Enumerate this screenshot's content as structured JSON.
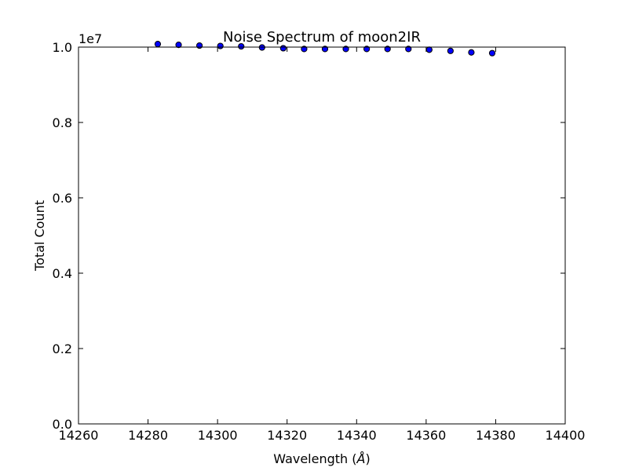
{
  "chart_data": {
    "type": "scatter",
    "title": "Noise Spectrum of moon2IR",
    "xlabel": "Wavelength (",
    "xlabel_unit": "Å",
    "xlabel_close": ")",
    "ylabel": "Total Count",
    "y_multiplier": "1e7",
    "xlim": [
      14260,
      14400
    ],
    "ylim": [
      0.0,
      1.0
    ],
    "xticks": [
      "14260",
      "14280",
      "14300",
      "14320",
      "14340",
      "14360",
      "14380",
      "14400"
    ],
    "yticks": [
      "0.0",
      "0.2",
      "0.4",
      "0.6",
      "0.8",
      "1.0"
    ],
    "grid": false,
    "marker_color": "#0000ff",
    "x": [
      14282.8,
      14288.8,
      14294.8,
      14300.8,
      14306.8,
      14312.8,
      14318.9,
      14324.9,
      14330.9,
      14336.9,
      14342.9,
      14348.9,
      14354.9,
      14360.9,
      14367.0,
      14373.0,
      14379.0
    ],
    "y": [
      1.008,
      1.006,
      1.004,
      1.003,
      1.002,
      0.999,
      0.997,
      0.995,
      0.995,
      0.995,
      0.995,
      0.995,
      0.995,
      0.993,
      0.99,
      0.986,
      0.984
    ]
  }
}
